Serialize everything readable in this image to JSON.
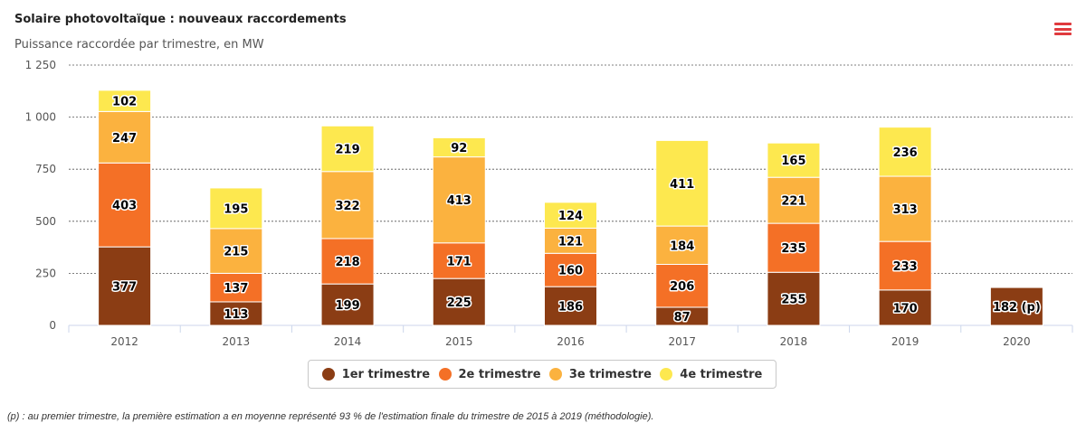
{
  "menu": {
    "icon": "hamburger-menu-icon"
  },
  "chart_data": {
    "type": "bar",
    "stacked": true,
    "title": "Solaire photovoltaïque : nouveaux raccordements",
    "subtitle": "Puissance raccordée par trimestre, en MW",
    "categories": [
      "2012",
      "2013",
      "2014",
      "2015",
      "2016",
      "2017",
      "2018",
      "2019",
      "2020"
    ],
    "series": [
      {
        "name": "1er trimestre",
        "color": "#8b3d14",
        "values": [
          377,
          113,
          199,
          225,
          186,
          87,
          255,
          170,
          182
        ]
      },
      {
        "name": "2e trimestre",
        "color": "#f47026",
        "values": [
          403,
          137,
          218,
          171,
          160,
          206,
          235,
          233,
          null
        ]
      },
      {
        "name": "3e trimestre",
        "color": "#fbb23f",
        "values": [
          247,
          215,
          322,
          413,
          121,
          184,
          221,
          313,
          null
        ]
      },
      {
        "name": "4e trimestre",
        "color": "#fde84f",
        "values": [
          102,
          195,
          219,
          92,
          124,
          411,
          165,
          236,
          null
        ]
      }
    ],
    "special_labels": {
      "2020-1er trimestre": "182 (p)"
    },
    "yticks": [
      "0",
      "250",
      "500",
      "750",
      "1 000",
      "1 250"
    ],
    "ylim": [
      0,
      1250
    ],
    "grid": true,
    "legend_position": "bottom-center"
  },
  "footnote": "(p) : au premier trimestre, la première estimation a en moyenne représenté 93 % de l'estimation finale du trimestre de 2015 à 2019 (méthodologie)."
}
